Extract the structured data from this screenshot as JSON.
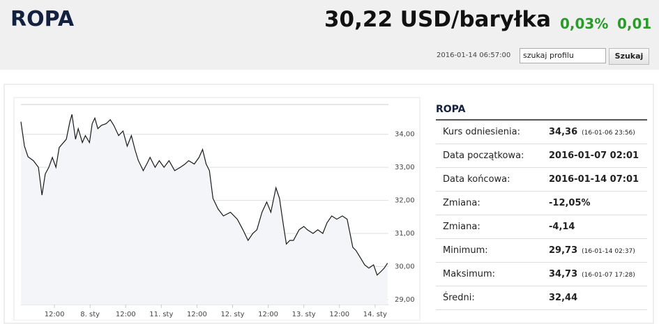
{
  "header": {
    "title": "ROPA",
    "price": "30,22 USD/baryłka",
    "change_percent": "0,03%",
    "change_value": "0,01",
    "timestamp": "2016-01-14 06:57:00",
    "search_value": "szukaj profilu",
    "search_button": "Szukaj"
  },
  "chart_data": {
    "type": "line",
    "x": [
      -1.3,
      -0.1,
      1.1,
      2.9,
      4.6,
      5.8,
      6.9,
      8.1,
      9.3,
      10.5,
      11.6,
      14.0,
      15.2,
      15.9,
      17.1,
      18.0,
      19.4,
      20.4,
      21.8,
      22.7,
      23.6,
      24.6,
      25.8,
      27.4,
      28.8,
      30.0,
      31.6,
      33.1,
      34.5,
      35.9,
      37.1,
      38.2,
      39.9,
      41.1,
      42.2,
      43.9,
      45.3,
      46.9,
      48.6,
      50.5,
      52.4,
      54.0,
      55.2,
      57.1,
      58.7,
      59.9,
      61.1,
      62.2,
      63.4,
      65.1,
      66.9,
      69.3,
      71.6,
      73.5,
      75.2,
      76.8,
      78.2,
      79.9,
      81.5,
      82.9,
      84.6,
      85.8,
      87.0,
      88.1,
      89.3,
      90.5,
      92.4,
      94.0,
      95.2,
      97.1,
      98.7,
      100.4,
      101.8,
      103.4,
      105.1,
      107.0,
      108.6,
      109.8,
      110.5,
      111.6,
      113.0,
      114.5,
      115.9,
      117.5,
      118.7,
      119.9,
      121.1,
      122.2
    ],
    "series": [
      {
        "name": "ROPA",
        "color": "#1a1a1a",
        "values": [
          34.38,
          33.64,
          33.32,
          33.2,
          33.0,
          32.16,
          32.8,
          33.0,
          33.3,
          33.0,
          33.6,
          33.85,
          34.38,
          34.6,
          33.85,
          34.17,
          33.75,
          33.96,
          33.75,
          34.32,
          34.49,
          34.17,
          34.27,
          34.32,
          34.44,
          34.27,
          33.96,
          34.1,
          33.64,
          33.96,
          33.54,
          33.22,
          32.9,
          33.1,
          33.3,
          33.0,
          33.2,
          33.0,
          33.2,
          32.9,
          33.0,
          33.1,
          33.2,
          33.1,
          33.3,
          33.54,
          33.1,
          32.9,
          32.06,
          31.74,
          31.53,
          31.64,
          31.43,
          31.11,
          30.79,
          31.0,
          31.11,
          31.64,
          31.95,
          31.64,
          32.38,
          32.06,
          31.32,
          30.68,
          30.79,
          30.79,
          31.11,
          31.21,
          31.11,
          31.0,
          31.11,
          31.0,
          31.32,
          31.53,
          31.43,
          31.53,
          31.43,
          30.9,
          30.58,
          30.48,
          30.27,
          30.05,
          29.95,
          30.05,
          29.74,
          29.84,
          29.95,
          30.1
        ]
      }
    ],
    "xlim": [
      -1.3,
      122.5
    ],
    "ylim": [
      28.85,
      34.9
    ],
    "xticks": [
      {
        "value": 10,
        "label": "12:00"
      },
      {
        "value": 22,
        "label": "8. sty"
      },
      {
        "value": 34,
        "label": "12:00"
      },
      {
        "value": 46,
        "label": "11. sty"
      },
      {
        "value": 58,
        "label": "12:00"
      },
      {
        "value": 70,
        "label": "12. sty"
      },
      {
        "value": 82,
        "label": "12:00"
      },
      {
        "value": 94,
        "label": "13. sty"
      },
      {
        "value": 106,
        "label": "12:00"
      },
      {
        "value": 118,
        "label": "14. sty"
      }
    ],
    "yticks": [
      {
        "value": 29,
        "label": "29,00"
      },
      {
        "value": 30,
        "label": "30,00"
      },
      {
        "value": 31,
        "label": "31,00"
      },
      {
        "value": 32,
        "label": "32,00"
      },
      {
        "value": 33,
        "label": "33,00"
      },
      {
        "value": 34,
        "label": "34,00"
      }
    ],
    "grid": true
  },
  "info": {
    "title": "ROPA",
    "rows": [
      {
        "label": "Kurs odniesienia:",
        "value": "34,36",
        "note": "(16-01-06 23:56)"
      },
      {
        "label": "Data początkowa:",
        "value": "2016-01-07 02:01"
      },
      {
        "label": "Data końcowa:",
        "value": "2016-01-14 07:01"
      },
      {
        "label": "Zmiana:",
        "value": "-12,05%"
      },
      {
        "label": "Zmiana:",
        "value": "-4,14"
      },
      {
        "label": "Minimum:",
        "value": "29,73",
        "note": "(16-01-14 02:37)"
      },
      {
        "label": "Maksimum:",
        "value": "34,73",
        "note": "(16-01-07 17:28)"
      },
      {
        "label": "Średni:",
        "value": "32,44"
      }
    ]
  }
}
